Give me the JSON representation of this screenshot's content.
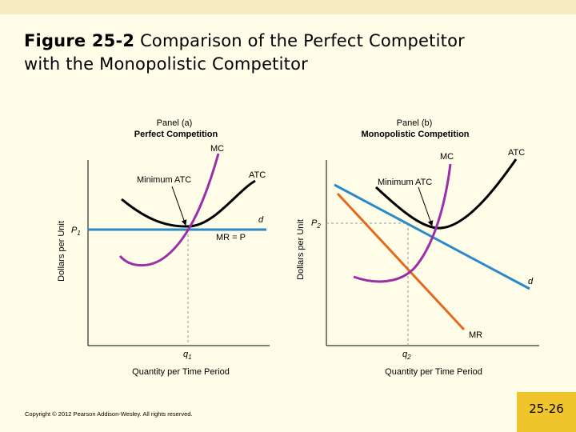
{
  "slide": {
    "title_number": "Figure 25-2",
    "title_text": "  Comparison of the Perfect Competitor",
    "title_line2": "with the Monopolistic Competitor",
    "copyright": "Copyright © 2012 Pearson Addison-Wesley. All rights reserved.",
    "slide_number": "25-26"
  },
  "colors": {
    "background": "#FFFCE8",
    "accent_box": "#F0C52C",
    "mc_curve": "#9B2FA8",
    "atc_curve": "#000000",
    "demand_curve": "#2A8AC8",
    "mr_curve": "#E26A1F"
  },
  "panel_a": {
    "panel_label": "Panel (a)",
    "panel_title": "Perfect Competition",
    "y_axis_label": "Dollars per Unit",
    "x_axis_label": "Quantity per Time Period",
    "price_label": "P",
    "price_sub": "1",
    "quantity_label": "q",
    "quantity_sub": "1",
    "mc_label": "MC",
    "atc_label": "ATC",
    "min_atc_label": "Minimum ATC",
    "d_label": "d",
    "mr_label": "MR = P"
  },
  "panel_b": {
    "panel_label": "Panel (b)",
    "panel_title": "Monopolistic Competition",
    "y_axis_label": "Dollars per Unit",
    "x_axis_label": "Quantity per Time Period",
    "price_label": "P",
    "price_sub": "2",
    "quantity_label": "q",
    "quantity_sub": "2",
    "mc_label": "MC",
    "atc_label": "ATC",
    "min_atc_label": "Minimum ATC",
    "d_label": "d",
    "mr_label": "MR"
  }
}
